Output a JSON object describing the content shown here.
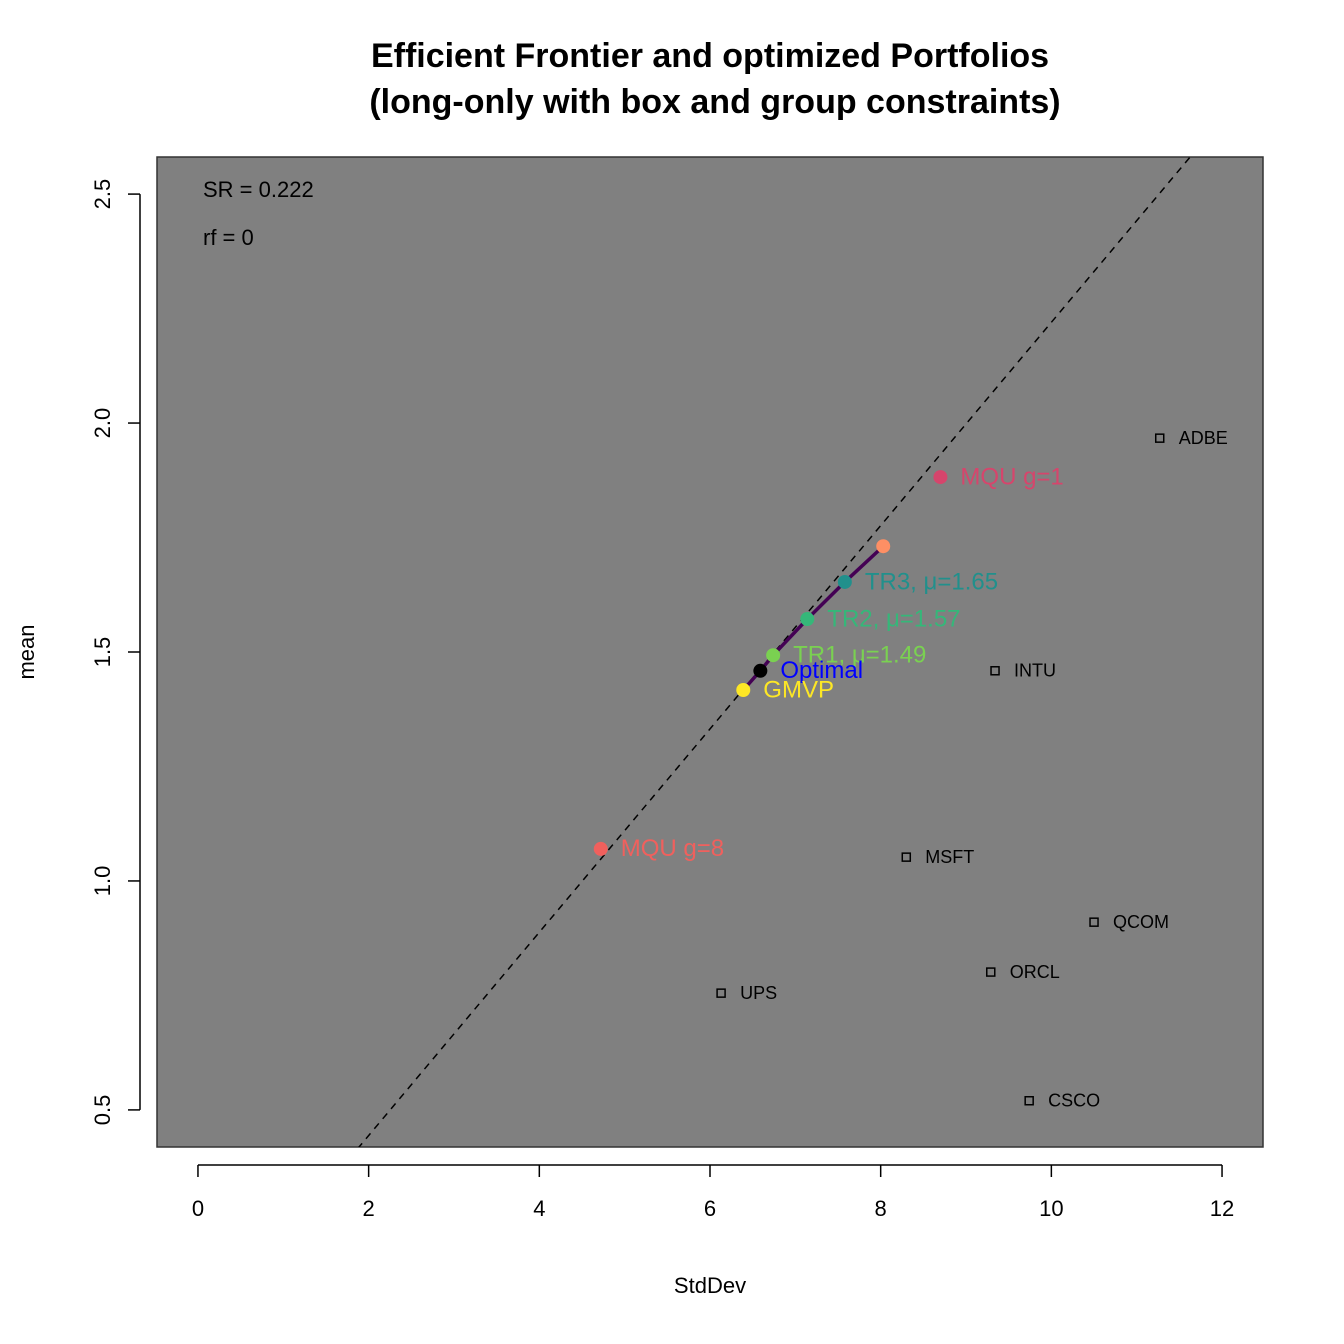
{
  "chart_data": {
    "type": "scatter",
    "title": "Efficient Frontier and optimized Portfolios",
    "subtitle": "(long-only with box and group constraints)",
    "x_label": "StdDev",
    "y_label": "mean",
    "xlim": [
      -0.48,
      12.48
    ],
    "ylim": [
      0.419,
      2.581
    ],
    "xticks": [
      0,
      2,
      4,
      6,
      8,
      10,
      12
    ],
    "yticks": [
      0.5,
      {
        "value": 1,
        "label": "1.0"
      },
      1.5,
      {
        "value": 2,
        "label": "2.0"
      },
      2.5
    ],
    "background": "#808080",
    "annotations": [
      "SR = 0.222",
      "rf = 0"
    ],
    "sr": 0.222,
    "rf": 0,
    "assets": {
      "names": [
        "ADBE",
        "INTU",
        "MSFT",
        "QCOM",
        "ORCL",
        "UPS",
        "CSCO"
      ],
      "x": [
        11.27,
        9.34,
        8.3,
        10.5,
        9.29,
        6.13,
        9.74
      ],
      "y": [
        1.967,
        1.459,
        1.052,
        0.91,
        0.801,
        0.755,
        0.52
      ]
    },
    "frontier": {
      "color": "#440154",
      "x": [
        6.39,
        6.59,
        6.74,
        7.14,
        7.58,
        8.03
      ],
      "y": [
        1.417,
        1.459,
        1.493,
        1.572,
        1.653,
        1.731
      ]
    },
    "portfolios": [
      {
        "label": "MQU g=1",
        "color": "#d6456c",
        "x": 8.7,
        "y": 1.882
      },
      {
        "color": "#fe8f64",
        "x": 8.03,
        "y": 1.731
      },
      {
        "label": "TR3, μ=1.65",
        "color": "#21908c",
        "x": 7.58,
        "y": 1.653
      },
      {
        "label": "TR2, μ=1.57",
        "color": "#35b779",
        "x": 7.14,
        "y": 1.572
      },
      {
        "label": "TR1, μ=1.49",
        "color": "#7ad151",
        "x": 6.74,
        "y": 1.493
      },
      {
        "label": "Optimal",
        "color": "#000000",
        "label_color": "#0000ff",
        "x": 6.59,
        "y": 1.459
      },
      {
        "label": "GMVP",
        "color": "#fde725",
        "x": 6.39,
        "y": 1.417
      },
      {
        "label": "MQU g=8",
        "color": "#f0605d",
        "x": 4.72,
        "y": 1.07
      }
    ]
  }
}
